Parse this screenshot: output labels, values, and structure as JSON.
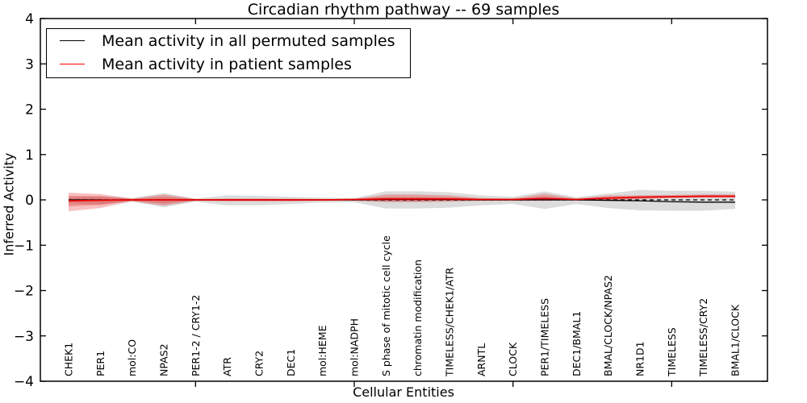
{
  "title": "Circadian rhythm pathway -- 69 samples",
  "legend": {
    "items": [
      {
        "label": "Mean activity in all permuted samples",
        "color": "#000000"
      },
      {
        "label": "Mean activity in patient samples",
        "color": "#ff0000"
      }
    ]
  },
  "chart_data": {
    "type": "line",
    "title": "Circadian rhythm pathway -- 69 samples",
    "xlabel": "Cellular Entities",
    "ylabel": "Inferred Activity",
    "ylim": [
      -4,
      4
    ],
    "yticks": [
      4,
      3,
      2,
      1,
      0,
      -1,
      -2,
      -3,
      -4
    ],
    "grid": false,
    "legend_position": "upper left",
    "categories": [
      "CHEK1",
      "PER1",
      "mol:CO",
      "NPAS2",
      "PER1-2 / CRY1-2",
      "ATR",
      "CRY2",
      "DEC1",
      "mol:HEME",
      "mol:NADPH",
      "S phase of mitotic cell cycle",
      "chromatin modification",
      "TIMELESS/CHEK1/ATR",
      "ARNTL",
      "CLOCK",
      "PER1/TIMELESS",
      "DEC1/BMAL1",
      "BMAL/CLOCK/NPAS2",
      "NR1D1",
      "TIMELESS",
      "TIMELESS/CRY2",
      "BMAL1/CLOCK"
    ],
    "series": [
      {
        "name": "Mean activity in all permuted samples",
        "color": "#000000",
        "style": "solid",
        "width": 1.3,
        "values": [
          0,
          0,
          0,
          0,
          0,
          0,
          0,
          0,
          0,
          0,
          0.01,
          0.01,
          0.01,
          0,
          0,
          0,
          0,
          -0.01,
          -0.02,
          -0.04,
          -0.05,
          -0.05
        ]
      },
      {
        "name": "Mean activity in patient samples",
        "color": "#ee0000",
        "style": "solid",
        "width": 1.7,
        "values": [
          -0.02,
          -0.01,
          0,
          0,
          0,
          0,
          0,
          0,
          0,
          0.01,
          0.02,
          0.02,
          0.02,
          0.01,
          0.01,
          0.03,
          0.01,
          0.04,
          0.06,
          0.07,
          0.08,
          0.08
        ]
      }
    ],
    "bands": [
      {
        "name": "permuted-range",
        "color": "rgba(125,125,125,0.27)",
        "upper": [
          0.06,
          0.08,
          0.04,
          0.15,
          0.03,
          0.1,
          0.09,
          0.07,
          0.05,
          0.04,
          0.19,
          0.19,
          0.17,
          0.1,
          0.07,
          0.19,
          0.06,
          0.14,
          0.22,
          0.2,
          0.2,
          0.18
        ],
        "lower": [
          -0.08,
          -0.1,
          -0.04,
          -0.16,
          -0.04,
          -0.12,
          -0.12,
          -0.09,
          -0.06,
          -0.05,
          -0.19,
          -0.19,
          -0.17,
          -0.12,
          -0.09,
          -0.2,
          -0.09,
          -0.18,
          -0.23,
          -0.24,
          -0.24,
          -0.2
        ]
      },
      {
        "name": "patient-range-outer",
        "color": "rgba(225,30,30,0.28)",
        "upper": [
          0.16,
          0.13,
          0.03,
          0.12,
          0.02,
          0.03,
          0.03,
          0.025,
          0.02,
          0.02,
          0.12,
          0.12,
          0.1,
          0.04,
          0.03,
          0.14,
          0.03,
          0.1,
          0.1,
          0.11,
          0.12,
          0.12
        ],
        "lower": [
          -0.25,
          -0.18,
          -0.03,
          -0.13,
          -0.02,
          -0.03,
          -0.03,
          -0.03,
          -0.02,
          -0.02,
          -0.05,
          -0.05,
          -0.04,
          -0.02,
          -0.02,
          -0.02,
          -0.01,
          -0.01,
          0.02,
          0.04,
          0.05,
          0.05
        ]
      },
      {
        "name": "patient-range-inner",
        "color": "rgba(225,30,30,0.30)",
        "upper": [
          0.09,
          0.08,
          0.02,
          0.07,
          0.015,
          0.02,
          0.02,
          0.02,
          0.015,
          0.015,
          0.07,
          0.07,
          0.06,
          0.025,
          0.02,
          0.08,
          0.02,
          0.06,
          0.08,
          0.09,
          0.1,
          0.1
        ],
        "lower": [
          -0.14,
          -0.11,
          -0.02,
          -0.08,
          -0.015,
          -0.02,
          -0.02,
          -0.02,
          -0.015,
          -0.015,
          -0.03,
          -0.03,
          -0.02,
          -0.015,
          -0.01,
          -0.01,
          -0.005,
          0.0,
          0.03,
          0.05,
          0.06,
          0.06
        ]
      }
    ],
    "zero_line": {
      "y": 0,
      "style": "dashed",
      "color": "#000000"
    },
    "x_major_tick_indices": [
      4,
      9,
      14,
      19
    ]
  }
}
